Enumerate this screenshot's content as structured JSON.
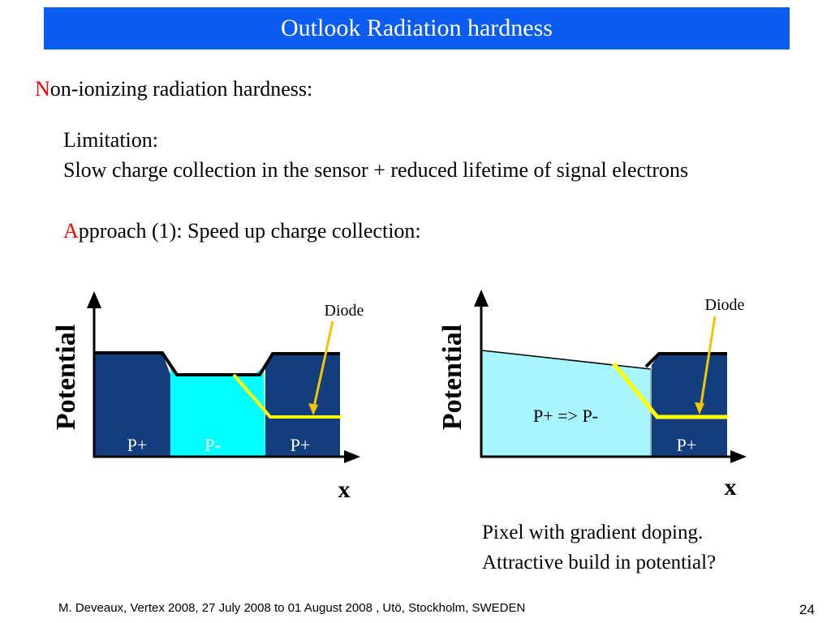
{
  "slide": {
    "title": "Outlook Radiation hardness",
    "heading_initial": "N",
    "heading_rest": "on-ionizing radiation hardness:",
    "limitation_label": "Limitation:",
    "limitation_text": "Slow charge collection in the sensor + reduced lifetime of signal electrons",
    "approach_initial": "A",
    "approach_rest": "pproach (1): Speed up charge collection:",
    "conclusion_line1": "Pixel with gradient doping.",
    "conclusion_line2": "Attractive build in potential?",
    "footer": "M. Deveaux, Vertex 2008, 27 July 2008 to 01 August 2008 , Utö, Stockholm, SWEDEN",
    "page_number": "24"
  },
  "diagram_left": {
    "y_axis_label": "Potential",
    "x_axis_label": "x",
    "diode_label": "Diode",
    "region_left": "P+",
    "region_middle": "P-",
    "region_right": "P+"
  },
  "diagram_right": {
    "y_axis_label": "Potential",
    "x_axis_label": "x",
    "diode_label": "Diode",
    "region_gradient": "P+ => P-",
    "region_right": "P+"
  },
  "colors": {
    "title_bg": "#0b5cf0",
    "p_plus": "#123e80",
    "p_minus": "#00ffff",
    "gradient_region": "#a6f4fc",
    "highlight_line": "#ffff00",
    "diode_arrow": "#f5c400",
    "accent_red": "#ff0000"
  }
}
